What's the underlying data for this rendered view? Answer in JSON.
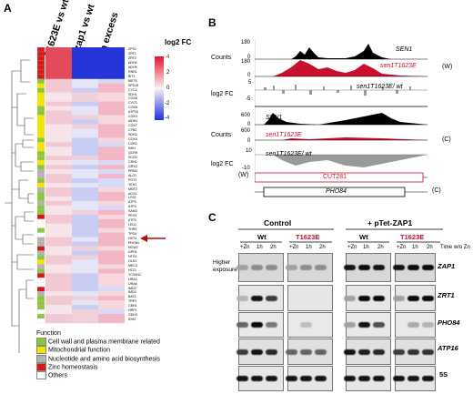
{
  "panel_a": {
    "letter": "A",
    "columns": [
      "T1623E vs wt",
      "Δzap1 vs wt",
      "Zn excess"
    ],
    "scale_title": "log2 FC",
    "scale_ticks": [
      "4",
      "2",
      "0",
      "-2",
      "-4"
    ],
    "arrow_color": "#a11",
    "genes": [
      "ZPS1",
      "ZRT1",
      "ZRT2",
      "ADH4",
      "ADH5",
      "RNR1",
      "BIT1",
      "MET6",
      "SPS19",
      "CYC2",
      "SDH1",
      "COX8",
      "CYC3",
      "COX6",
      "ATP16",
      "COX4",
      "MDH1",
      "COX7",
      "CYB2",
      "SDH3",
      "COX4",
      "COR1",
      "INH1",
      "QCR9",
      "SCO2",
      "CRN1",
      "GRX2",
      "PRM3",
      "ALO1",
      "POT1",
      "YEH1",
      "MNT2",
      "ACS1",
      "LYS2",
      "ATP3",
      "ATP4",
      "SAM3",
      "PEX3",
      "ATP2",
      "LEU1",
      "THR4",
      "TPO4",
      "HXT4",
      "PHO84",
      "NCW2",
      "GPH1",
      "NTG1",
      "OLD1",
      "MEC3",
      "HTZ1",
      "YCS4NC",
      "URA3",
      "URA8",
      "IMD2",
      "IMD3",
      "BAT1",
      "TRP3",
      "CBH1",
      "HRP1",
      "GDH3",
      "IDH2"
    ],
    "legend_title": "Function",
    "legend_items": [
      {
        "label": "Cell wall and plasma membrane related",
        "color": "#8cc63f"
      },
      {
        "label": "Mitochondrial function",
        "color": "#f5e400"
      },
      {
        "label": "Nucleotide and amino acid biosynthesis",
        "color": "#b3b3b3"
      },
      {
        "label": "Zinc homeostasis",
        "color": "#d7191c"
      },
      {
        "label": "Others",
        "color": "#ffffff"
      }
    ]
  },
  "panel_b": {
    "letter": "B",
    "y_counts": "Counts",
    "y_fc": "log2 FC",
    "w_tracks": {
      "max1": "180",
      "zero1": "0",
      "max2": "180",
      "zero2": "0",
      "fc_max": "5",
      "fc_min": "-5"
    },
    "c_tracks": {
      "max1": "600",
      "zero1": "0",
      "max2": "600",
      "zero2": "0",
      "fc_max": "10",
      "fc_min": "-10"
    },
    "track_labels": [
      "SEN1",
      "sen1T1623E",
      "sen1T1623E/ wt",
      "SEN1",
      "sen1T1623E",
      "sen1T1623E/ wt"
    ],
    "strand_w": "(W)",
    "strand_c": "(C)",
    "feature_1": "CUT281",
    "feature_2": "PHO84",
    "red": "#c8102e"
  },
  "panel_c": {
    "letter": "C",
    "group_left": "Control",
    "group_right": "+ pTet-ZAP1",
    "wt": "Wt",
    "mut": "T1623E",
    "lanes": [
      "+Zn",
      "1h",
      "2h",
      "+Zn",
      "1h",
      "2h"
    ],
    "time_label": "Time w/o Zn",
    "higher_exposure": "Higher exposure",
    "rows": [
      "ZAP1",
      "ZRT1",
      "PHO84",
      "ATP16",
      "5S"
    ]
  }
}
